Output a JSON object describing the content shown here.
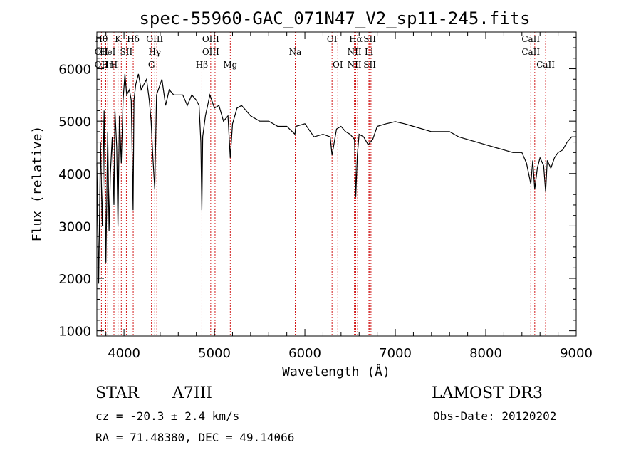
{
  "chart_data": {
    "type": "line",
    "title": "spec-55960-GAC_071N47_V2_sp11-245.fits",
    "xlabel": "Wavelength (Å)",
    "ylabel": "Flux (relative)",
    "xlim": [
      3700,
      9000
    ],
    "ylim": [
      900,
      6700
    ],
    "x_ticks": [
      4000,
      5000,
      6000,
      7000,
      8000,
      9000
    ],
    "y_ticks": [
      1000,
      2000,
      3000,
      4000,
      5000,
      6000
    ],
    "grid": false,
    "line_color": "#000000",
    "marker_color": "#cc0000",
    "series": [
      {
        "x": [
          3700,
          3720,
          3740,
          3760,
          3780,
          3800,
          3820,
          3835,
          3850,
          3870,
          3889,
          3900,
          3920,
          3933,
          3950,
          3970,
          3990,
          4010,
          4030,
          4060,
          4080,
          4101,
          4110,
          4130,
          4160,
          4190,
          4220,
          4250,
          4280,
          4300,
          4320,
          4340,
          4360,
          4380,
          4420,
          4460,
          4500,
          4550,
          4600,
          4650,
          4700,
          4750,
          4800,
          4830,
          4850,
          4861,
          4870,
          4900,
          4950,
          5000,
          5050,
          5100,
          5150,
          5175,
          5200,
          5250,
          5300,
          5400,
          5500,
          5600,
          5700,
          5800,
          5890,
          5900,
          6000,
          6100,
          6200,
          6280,
          6300,
          6350,
          6400,
          6450,
          6500,
          6550,
          6563,
          6580,
          6600,
          6650,
          6700,
          6750,
          6800,
          6900,
          7000,
          7100,
          7200,
          7300,
          7400,
          7500,
          7600,
          7700,
          7800,
          7900,
          8000,
          8100,
          8200,
          8300,
          8400,
          8450,
          8498,
          8520,
          8542,
          8570,
          8600,
          8640,
          8662,
          8680,
          8720,
          8760,
          8800,
          8850,
          8900,
          8950,
          9000
        ],
        "y": [
          4200,
          1900,
          4600,
          3000,
          5200,
          2300,
          4800,
          2900,
          4000,
          4700,
          3400,
          5200,
          4500,
          3000,
          5100,
          4200,
          5400,
          5900,
          5500,
          5600,
          5400,
          3300,
          5400,
          5700,
          5900,
          5600,
          5700,
          5800,
          5400,
          5000,
          4300,
          3700,
          5500,
          5600,
          5800,
          5300,
          5600,
          5500,
          5500,
          5500,
          5300,
          5500,
          5400,
          5300,
          4600,
          3300,
          4700,
          5100,
          5500,
          5250,
          5300,
          5000,
          5100,
          4300,
          4950,
          5250,
          5300,
          5100,
          5000,
          5000,
          4900,
          4900,
          4750,
          4900,
          4950,
          4700,
          4750,
          4700,
          4350,
          4850,
          4900,
          4800,
          4750,
          4650,
          3550,
          4350,
          4750,
          4700,
          4550,
          4650,
          4900,
          4950,
          4990,
          4950,
          4900,
          4850,
          4800,
          4800,
          4800,
          4700,
          4650,
          4600,
          4550,
          4500,
          4450,
          4400,
          4400,
          4200,
          3800,
          4250,
          3700,
          4100,
          4300,
          4150,
          3650,
          4250,
          4100,
          4300,
          4400,
          4450,
          4600,
          4700,
          4700
        ]
      }
    ],
    "lines": [
      {
        "w": 3750,
        "top": "Hθ",
        "mid": "OII",
        "bot": "OII"
      },
      {
        "w": 3798,
        "top": "",
        "mid": "",
        "bot": ""
      },
      {
        "w": 3820,
        "top": "",
        "mid": "HeI",
        "bot": "Hη"
      },
      {
        "w": 3889,
        "top": "",
        "mid": "",
        "bot": "H"
      },
      {
        "w": 3934,
        "top": "K",
        "mid": "",
        "bot": ""
      },
      {
        "w": 3970,
        "top": "",
        "mid": "",
        "bot": ""
      },
      {
        "w": 4026,
        "top": "",
        "mid": "SII",
        "bot": ""
      },
      {
        "w": 4102,
        "top": "Hδ",
        "mid": "",
        "bot": ""
      },
      {
        "w": 4304,
        "top": "",
        "mid": "",
        "bot": "G"
      },
      {
        "w": 4340,
        "top": "OIII",
        "mid": "Hγ",
        "bot": ""
      },
      {
        "w": 4363,
        "top": "",
        "mid": "",
        "bot": ""
      },
      {
        "w": 4861,
        "top": "",
        "mid": "",
        "bot": "Hβ"
      },
      {
        "w": 4959,
        "top": "OIII",
        "mid": "OIII",
        "bot": ""
      },
      {
        "w": 5007,
        "top": "",
        "mid": "",
        "bot": ""
      },
      {
        "w": 5175,
        "top": "",
        "mid": "",
        "bot": "Mg"
      },
      {
        "w": 5893,
        "top": "",
        "mid": "Na",
        "bot": ""
      },
      {
        "w": 6300,
        "top": "OI",
        "mid": "",
        "bot": ""
      },
      {
        "w": 6364,
        "top": "",
        "mid": "",
        "bot": "OI"
      },
      {
        "w": 6548,
        "top": "",
        "mid": "NII",
        "bot": "NII"
      },
      {
        "w": 6563,
        "top": "Hα",
        "mid": "",
        "bot": ""
      },
      {
        "w": 6583,
        "top": "",
        "mid": "",
        "bot": ""
      },
      {
        "w": 6708,
        "top": "",
        "mid": "Li",
        "bot": ""
      },
      {
        "w": 6717,
        "top": "SII",
        "mid": "",
        "bot": "SII"
      },
      {
        "w": 6731,
        "top": "",
        "mid": "",
        "bot": ""
      },
      {
        "w": 8498,
        "top": "CaII",
        "mid": "CaII",
        "bot": ""
      },
      {
        "w": 8542,
        "top": "",
        "mid": "",
        "bot": ""
      },
      {
        "w": 8662,
        "top": "",
        "mid": "",
        "bot": "CaII"
      }
    ]
  },
  "info": {
    "object_class": "STAR",
    "subclass": "A7III",
    "survey": "LAMOST DR3",
    "cz": "cz = -20.3 ± 2.4 km/s",
    "obs_date": "Obs-Date: 20120202",
    "coords": "RA =  71.48380, DEC =  49.14066"
  }
}
